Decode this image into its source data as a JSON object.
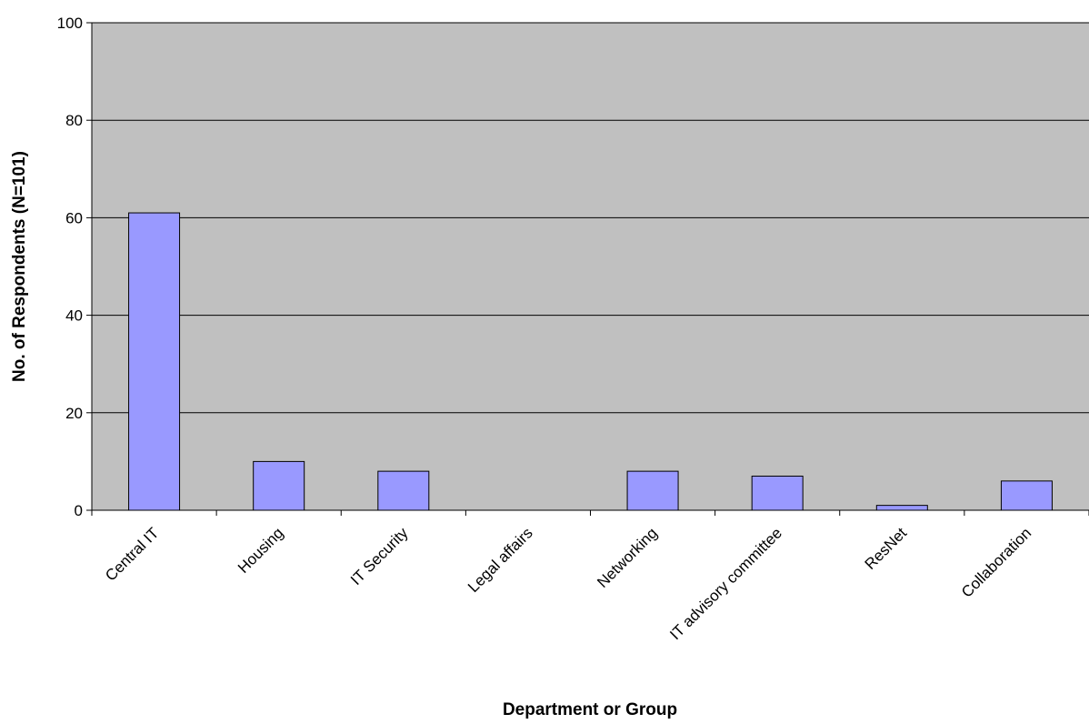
{
  "chart_data": {
    "type": "bar",
    "title": "",
    "xlabel": "Department or Group",
    "ylabel": "No. of Respondents (N=101)",
    "categories": [
      "Central IT",
      "Housing",
      "IT Security",
      "Legal affairs",
      "Networking",
      "IT advisory committee",
      "ResNet",
      "Collaboration"
    ],
    "values": [
      61,
      10,
      8,
      0,
      8,
      7,
      1,
      6
    ],
    "ylim": [
      0,
      100
    ],
    "yticks": [
      "0",
      "20",
      "40",
      "60",
      "80",
      "100"
    ],
    "grid": true,
    "legend": "none",
    "colors": {
      "plot_background": "#C0C0C0",
      "bar_fill": "#9999FF",
      "bar_stroke": "#000000",
      "gridline": "#000000"
    }
  }
}
